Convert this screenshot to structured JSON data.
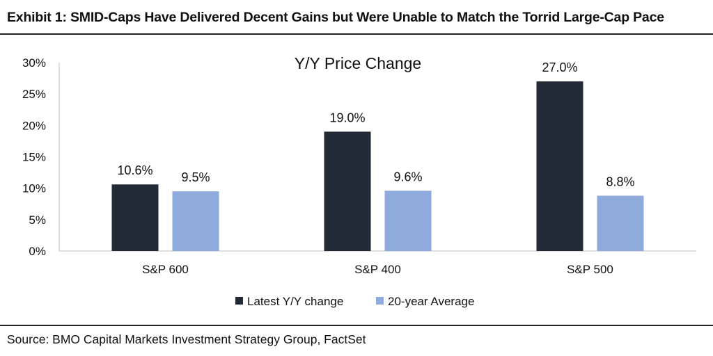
{
  "exhibit_title": "Exhibit 1: SMID-Caps Have Delivered Decent Gains but Were Unable to Match the Torrid Large-Cap Pace",
  "source": "Source: BMO Capital Markets Investment Strategy Group, FactSet",
  "colors": {
    "latest": "#222a35",
    "average": "#8faadc"
  },
  "chart_data": {
    "type": "bar",
    "title": "Y/Y Price Change",
    "xlabel": "",
    "ylabel": "",
    "categories": [
      "S&P 600",
      "S&P 400",
      "S&P 500"
    ],
    "series": [
      {
        "name": "Latest Y/Y change",
        "values": [
          10.6,
          19.0,
          27.0
        ],
        "labels": [
          "10.6%",
          "19.0%",
          "27.0%"
        ]
      },
      {
        "name": "20-year Average",
        "values": [
          9.5,
          9.6,
          8.8
        ],
        "labels": [
          "9.5%",
          "9.6%",
          "8.8%"
        ]
      }
    ],
    "ylim": [
      0,
      30
    ],
    "yticks": [
      0,
      5,
      10,
      15,
      20,
      25,
      30
    ],
    "ytick_labels": [
      "0%",
      "5%",
      "10%",
      "15%",
      "20%",
      "25%",
      "30%"
    ],
    "grid": false,
    "legend_position": "bottom"
  }
}
